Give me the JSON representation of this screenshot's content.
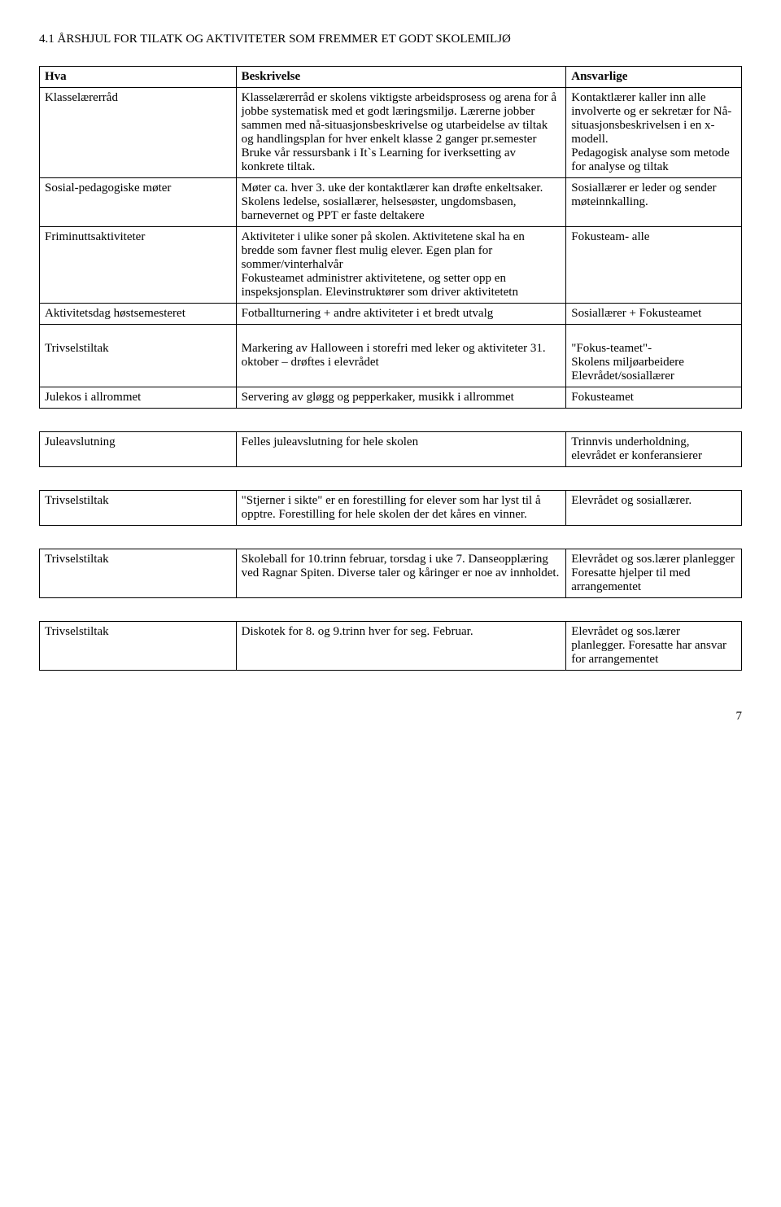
{
  "heading": "4.1 ÅRSHJUL FOR TILATK OG AKTIVITETER SOM FREMMER ET GODT SKOLEMILJØ",
  "columns": [
    "Hva",
    "Beskrivelse",
    "Ansvarlige"
  ],
  "tables": [
    {
      "rows": [
        {
          "hva": "Klasselærerråd",
          "besk": "Klasselærerråd er skolens viktigste arbeidsprosess og arena for å jobbe systematisk med et godt læringsmiljø. Lærerne jobber sammen med nå-situasjonsbeskrivelse og utarbeidelse av tiltak og handlingsplan for hver enkelt klasse 2 ganger pr.semester\nBruke vår ressursbank i It`s Learning for iverksetting av konkrete tiltak.",
          "ansv": "Kontaktlærer kaller inn alle involverte og er sekretær for Nå-situasjonsbeskrivelsen i en x-modell.\nPedagogisk analyse som metode for analyse og tiltak"
        },
        {
          "hva": "Sosial-pedagogiske møter",
          "besk": "Møter ca. hver 3. uke der kontaktlærer kan drøfte enkeltsaker. Skolens ledelse, sosiallærer, helsesøster, ungdomsbasen, barnevernet og PPT er faste deltakere",
          "ansv": "Sosiallærer er leder og sender møteinnkalling."
        },
        {
          "hva": "Friminuttsaktiviteter",
          "besk": "Aktiviteter i ulike soner på skolen. Aktivitetene skal ha en bredde som favner flest mulig elever. Egen plan for sommer/vinterhalvår\nFokusteamet administrer aktivitetene, og setter opp en inspeksjonsplan. Elevinstruktører som driver aktivitetetn",
          "ansv": "Fokusteam- alle"
        },
        {
          "hva": "Aktivitetsdag høstsemesteret",
          "besk": "Fotballturnering + andre aktiviteter i et bredt utvalg",
          "ansv": "Sosiallærer + Fokusteamet"
        },
        {
          "hva": "\nTrivselstiltak",
          "besk": "\nMarkering av Halloween i storefri med leker og aktiviteter 31. oktober – drøftes i elevrådet",
          "ansv": "\n\"Fokus-teamet\"-\nSkolens miljøarbeidere Elevrådet/sosiallærer"
        },
        {
          "hva": "Julekos i allrommet",
          "besk": "Servering av gløgg og pepperkaker, musikk i allrommet",
          "ansv": "Fokusteamet"
        }
      ]
    },
    {
      "rows": [
        {
          "hva": "Juleavslutning",
          "besk": "Felles juleavslutning for hele skolen",
          "ansv": "Trinnvis underholdning, elevrådet er konferansierer"
        }
      ]
    },
    {
      "rows": [
        {
          "hva": "Trivselstiltak",
          "besk": "\"Stjerner i sikte\" er en forestilling for elever som har lyst til å opptre. Forestilling for hele skolen der det kåres en vinner.",
          "ansv": "Elevrådet og sosiallærer."
        }
      ]
    },
    {
      "rows": [
        {
          "hva": "Trivselstiltak",
          "besk": "Skoleball for 10.trinn februar, torsdag i uke 7. Danseopplæring ved Ragnar Spiten. Diverse taler og kåringer er noe av innholdet.",
          "ansv": "Elevrådet og sos.lærer planlegger Foresatte hjelper til med arrangementet"
        }
      ]
    },
    {
      "rows": [
        {
          "hva": "Trivselstiltak",
          "besk": "Diskotek for 8. og 9.trinn hver for seg. Februar.",
          "ansv": "Elevrådet og sos.lærer planlegger. Foresatte har ansvar for arrangementet"
        }
      ]
    }
  ],
  "pageNumber": "7"
}
